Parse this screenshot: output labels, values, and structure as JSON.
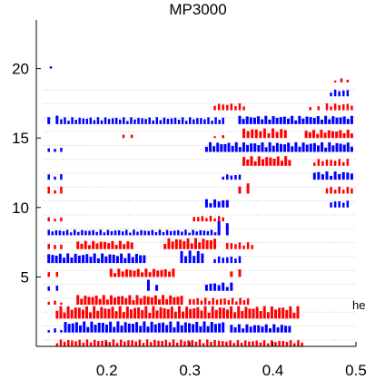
{
  "chart_data": {
    "type": "scatter",
    "title": "MP3000",
    "xlabel": "",
    "ylabel": "",
    "xlim": [
      0.115,
      0.5
    ],
    "ylim": [
      0,
      23.5
    ],
    "xticks": [
      0.2,
      0.3,
      0.4,
      0.5
    ],
    "xtick_labels": [
      "0.2",
      "0.3",
      "0.4",
      "0.5"
    ],
    "yticks": [
      5,
      10,
      15,
      20
    ],
    "ytick_labels": [
      "5",
      "10",
      "15",
      "20"
    ],
    "grid": false,
    "legend": "none",
    "annotations": [
      {
        "text": "he",
        "x": 0.5,
        "y": 3.0
      }
    ],
    "colors": {
      "red": "#ff0000",
      "blue": "#0000ff",
      "background": "#ffffff",
      "dotted": "#c8c8c8"
    },
    "rows": [
      {
        "y": 0.5,
        "color": "red",
        "segments": [
          [
            0.14,
            0.33,
            0.5
          ],
          [
            0.335,
            0.435,
            0.45
          ]
        ]
      },
      {
        "y": 1.5,
        "color": "blue",
        "segments": [
          [
            0.13,
            0.145,
            0.3
          ],
          [
            0.15,
            0.34,
            0.8
          ],
          [
            0.35,
            0.42,
            0.6
          ]
        ]
      },
      {
        "y": 2.5,
        "color": "red",
        "segments": [
          [
            0.14,
            0.43,
            0.9
          ]
        ]
      },
      {
        "y": 3.5,
        "color": "red",
        "segments": [
          [
            0.13,
            0.145,
            0.3
          ],
          [
            0.165,
            0.29,
            0.7
          ],
          [
            0.3,
            0.37,
            0.5
          ]
        ]
      },
      {
        "y": 4.5,
        "color": "blue",
        "segments": [
          [
            0.13,
            0.14,
            0.4
          ],
          [
            0.25,
            0.26,
            0.8
          ],
          [
            0.32,
            0.35,
            0.6
          ]
        ]
      },
      {
        "y": 5.5,
        "color": "red",
        "segments": [
          [
            0.13,
            0.14,
            0.4
          ],
          [
            0.205,
            0.28,
            0.6
          ],
          [
            0.35,
            0.36,
            0.6
          ]
        ]
      },
      {
        "y": 6.5,
        "color": "blue",
        "segments": [
          [
            0.13,
            0.245,
            0.7
          ],
          [
            0.29,
            0.315,
            0.9
          ],
          [
            0.33,
            0.36,
            0.5
          ]
        ]
      },
      {
        "y": 7.5,
        "color": "red",
        "segments": [
          [
            0.13,
            0.145,
            0.4
          ],
          [
            0.165,
            0.23,
            0.6
          ],
          [
            0.27,
            0.33,
            0.8
          ],
          [
            0.345,
            0.375,
            0.5
          ]
        ]
      },
      {
        "y": 8.5,
        "color": "blue",
        "segments": [
          [
            0.13,
            0.335,
            0.4
          ],
          [
            0.335,
            0.345,
            1.2
          ]
        ]
      },
      {
        "y": 9.5,
        "color": "red",
        "segments": [
          [
            0.13,
            0.145,
            0.3
          ],
          [
            0.305,
            0.34,
            0.4
          ]
        ]
      },
      {
        "y": 10.5,
        "color": "blue",
        "segments": [
          [
            0.32,
            0.345,
            0.6
          ],
          [
            0.47,
            0.49,
            0.5
          ]
        ]
      },
      {
        "y": 11.5,
        "color": "red",
        "segments": [
          [
            0.13,
            0.145,
            0.5
          ],
          [
            0.36,
            0.37,
            0.8
          ],
          [
            0.465,
            0.495,
            0.5
          ]
        ]
      },
      {
        "y": 12.5,
        "color": "blue",
        "segments": [
          [
            0.13,
            0.145,
            0.4
          ],
          [
            0.34,
            0.36,
            0.4
          ],
          [
            0.45,
            0.495,
            0.6
          ]
        ]
      },
      {
        "y": 13.5,
        "color": "red",
        "segments": [
          [
            0.365,
            0.42,
            0.7
          ],
          [
            0.45,
            0.49,
            0.5
          ]
        ]
      },
      {
        "y": 14.5,
        "color": "blue",
        "segments": [
          [
            0.13,
            0.145,
            0.3
          ],
          [
            0.32,
            0.495,
            0.7
          ]
        ]
      },
      {
        "y": 15.5,
        "color": "red",
        "segments": [
          [
            0.22,
            0.23,
            0.3
          ],
          [
            0.33,
            0.34,
            0.2
          ],
          [
            0.365,
            0.415,
            0.7
          ],
          [
            0.44,
            0.495,
            0.6
          ]
        ]
      },
      {
        "y": 16.5,
        "color": "blue",
        "segments": [
          [
            0.13,
            0.14,
            0.7
          ],
          [
            0.145,
            0.34,
            0.5
          ],
          [
            0.36,
            0.495,
            0.6
          ]
        ]
      },
      {
        "y": 17.5,
        "color": "red",
        "segments": [
          [
            0.33,
            0.365,
            0.5
          ],
          [
            0.445,
            0.455,
            0.3
          ],
          [
            0.465,
            0.495,
            0.5
          ]
        ]
      },
      {
        "y": 18.5,
        "color": "blue",
        "segments": [
          [
            0.47,
            0.49,
            0.5
          ]
        ]
      },
      {
        "y": 19.5,
        "color": "red",
        "segments": [
          [
            0.475,
            0.49,
            0.3
          ]
        ]
      },
      {
        "y": 20.5,
        "color": "blue",
        "segments": [
          [
            0.13,
            0.135,
            0.3
          ]
        ]
      }
    ]
  }
}
